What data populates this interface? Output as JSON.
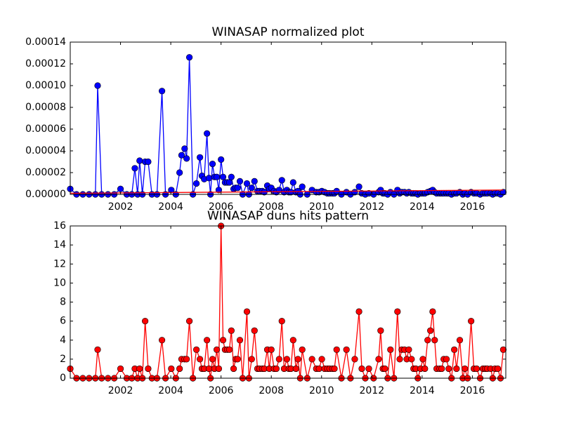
{
  "chart_data": [
    {
      "type": "line",
      "title": "WINASAP normalized plot",
      "x": [
        2000.0,
        2000.25,
        2000.5,
        2000.75,
        2001.0,
        2001.09,
        2001.25,
        2001.5,
        2001.75,
        2002.0,
        2002.25,
        2002.45,
        2002.57,
        2002.68,
        2002.76,
        2002.87,
        2002.98,
        2003.1,
        2003.25,
        2003.45,
        2003.65,
        2003.79,
        2004.02,
        2004.2,
        2004.35,
        2004.43,
        2004.55,
        2004.63,
        2004.74,
        2004.88,
        2005.02,
        2005.16,
        2005.24,
        2005.33,
        2005.44,
        2005.52,
        2005.58,
        2005.66,
        2005.74,
        2005.83,
        2005.91,
        2006.0,
        2006.08,
        2006.16,
        2006.25,
        2006.33,
        2006.41,
        2006.5,
        2006.58,
        2006.66,
        2006.75,
        2006.86,
        2007.03,
        2007.11,
        2007.22,
        2007.33,
        2007.45,
        2007.53,
        2007.64,
        2007.72,
        2007.84,
        2007.92,
        2008.0,
        2008.11,
        2008.2,
        2008.31,
        2008.42,
        2008.51,
        2008.62,
        2008.7,
        2008.78,
        2008.87,
        2008.98,
        2009.06,
        2009.15,
        2009.23,
        2009.43,
        2009.62,
        2009.79,
        2009.9,
        2010.01,
        2010.12,
        2010.23,
        2010.32,
        2010.43,
        2010.51,
        2010.6,
        2010.79,
        2010.99,
        2011.15,
        2011.32,
        2011.49,
        2011.6,
        2011.74,
        2011.88,
        2012.07,
        2012.27,
        2012.35,
        2012.44,
        2012.52,
        2012.63,
        2012.74,
        2012.88,
        2013.02,
        2013.11,
        2013.19,
        2013.3,
        2013.39,
        2013.47,
        2013.58,
        2013.66,
        2013.75,
        2013.83,
        2013.94,
        2014.03,
        2014.11,
        2014.22,
        2014.33,
        2014.42,
        2014.5,
        2014.58,
        2014.7,
        2014.78,
        2014.86,
        2014.97,
        2015.06,
        2015.17,
        2015.28,
        2015.37,
        2015.5,
        2015.62,
        2015.7,
        2015.81,
        2015.95,
        2016.06,
        2016.17,
        2016.31,
        2016.42,
        2016.51,
        2016.59,
        2016.73,
        2016.81,
        2016.9,
        2017.01,
        2017.12,
        2017.23
      ],
      "xlim": [
        2000.0,
        2017.33
      ],
      "xticks": [
        2002,
        2004,
        2006,
        2008,
        2010,
        2012,
        2014,
        2016
      ],
      "ylim": [
        0,
        0.00014
      ],
      "yticks": [
        {
          "value": 0,
          "label": "0.00000"
        },
        {
          "value": 2e-05,
          "label": "0.00002"
        },
        {
          "value": 4e-05,
          "label": "0.00004"
        },
        {
          "value": 6e-05,
          "label": "0.00006"
        },
        {
          "value": 8e-05,
          "label": "0.00008"
        },
        {
          "value": 0.0001,
          "label": "0.00010"
        },
        {
          "value": 0.00012,
          "label": "0.00012"
        },
        {
          "value": 0.00014,
          "label": "0.00014"
        }
      ],
      "series": [
        {
          "color": "#0000ff",
          "markers": true,
          "values": [
            5e-06,
            0,
            0,
            0,
            0,
            0.0001,
            0,
            0,
            0,
            5e-06,
            0,
            0,
            2.4e-05,
            0,
            3.1e-05,
            0,
            3e-05,
            3e-05,
            0,
            0,
            9.5e-05,
            0,
            4e-06,
            0,
            2e-05,
            3.6e-05,
            4.2e-05,
            3.3e-05,
            0.000126,
            0,
            1e-05,
            3.4e-05,
            1.7e-05,
            1.4e-05,
            5.6e-05,
            1.5e-05,
            0,
            2.8e-05,
            1.6e-05,
            1.6e-05,
            4e-06,
            3.2e-05,
            1.6e-05,
            1.1e-05,
            1.1e-05,
            1.1e-05,
            1.6e-05,
            5e-06,
            6e-06,
            6e-06,
            1.2e-05,
            0,
            1e-05,
            0,
            6e-06,
            1.2e-05,
            3e-06,
            3e-06,
            3e-06,
            2e-06,
            8e-06,
            5e-06,
            6e-06,
            3e-06,
            2e-06,
            4e-06,
            1.3e-05,
            2e-06,
            4e-06,
            2e-06,
            2e-06,
            1.1e-05,
            2e-06,
            3e-06,
            0,
            7e-06,
            0,
            4e-06,
            2e-06,
            2e-06,
            3e-06,
            2e-06,
            1e-06,
            1e-06,
            1e-06,
            1e-06,
            3e-06,
            0,
            2e-06,
            0,
            2e-06,
            7e-06,
            1e-06,
            0,
            1e-06,
            0,
            2e-06,
            4e-06,
            1e-06,
            1e-06,
            0,
            2e-06,
            0,
            4e-06,
            1e-06,
            2e-06,
            2e-06,
            1e-06,
            2e-06,
            1e-06,
            1e-06,
            1e-06,
            0,
            1e-06,
            1e-06,
            1e-06,
            2e-06,
            3e-06,
            4e-06,
            2e-06,
            1e-06,
            1e-06,
            1e-06,
            1e-06,
            1e-06,
            1e-06,
            0,
            1e-06,
            1e-06,
            2e-06,
            0,
            1e-06,
            0,
            2e-06,
            1e-06,
            1e-06,
            0,
            1e-06,
            1e-06,
            1e-06,
            1e-06,
            0,
            1e-06,
            1e-06,
            0,
            2e-06
          ]
        },
        {
          "color": "#ff0000",
          "markers": false,
          "x": [
            2000.0,
            2017.23
          ],
          "values": [
            1e-06,
            4e-06
          ]
        }
      ]
    },
    {
      "type": "line",
      "title": "WINASAP duns hits pattern",
      "x": [
        2000.0,
        2000.25,
        2000.5,
        2000.75,
        2001.0,
        2001.09,
        2001.25,
        2001.5,
        2001.75,
        2002.0,
        2002.25,
        2002.45,
        2002.57,
        2002.68,
        2002.76,
        2002.87,
        2002.98,
        2003.1,
        2003.25,
        2003.45,
        2003.65,
        2003.79,
        2004.02,
        2004.2,
        2004.35,
        2004.43,
        2004.55,
        2004.63,
        2004.74,
        2004.88,
        2005.02,
        2005.16,
        2005.24,
        2005.33,
        2005.44,
        2005.52,
        2005.58,
        2005.66,
        2005.74,
        2005.83,
        2005.91,
        2006.0,
        2006.08,
        2006.16,
        2006.25,
        2006.33,
        2006.41,
        2006.5,
        2006.58,
        2006.66,
        2006.75,
        2006.86,
        2007.03,
        2007.11,
        2007.22,
        2007.33,
        2007.45,
        2007.53,
        2007.64,
        2007.72,
        2007.84,
        2007.92,
        2008.0,
        2008.11,
        2008.2,
        2008.31,
        2008.42,
        2008.51,
        2008.62,
        2008.7,
        2008.78,
        2008.87,
        2008.98,
        2009.06,
        2009.15,
        2009.23,
        2009.43,
        2009.62,
        2009.79,
        2009.9,
        2010.01,
        2010.12,
        2010.23,
        2010.32,
        2010.43,
        2010.51,
        2010.6,
        2010.79,
        2010.99,
        2011.15,
        2011.32,
        2011.49,
        2011.6,
        2011.74,
        2011.88,
        2012.07,
        2012.27,
        2012.35,
        2012.44,
        2012.52,
        2012.63,
        2012.74,
        2012.88,
        2013.02,
        2013.11,
        2013.19,
        2013.3,
        2013.39,
        2013.47,
        2013.58,
        2013.66,
        2013.75,
        2013.83,
        2013.94,
        2014.03,
        2014.11,
        2014.22,
        2014.33,
        2014.42,
        2014.5,
        2014.58,
        2014.7,
        2014.78,
        2014.86,
        2014.97,
        2015.06,
        2015.17,
        2015.28,
        2015.37,
        2015.5,
        2015.62,
        2015.7,
        2015.81,
        2015.95,
        2016.06,
        2016.17,
        2016.31,
        2016.42,
        2016.51,
        2016.59,
        2016.73,
        2016.81,
        2016.9,
        2017.01,
        2017.12,
        2017.23
      ],
      "xlim": [
        2000.0,
        2017.33
      ],
      "xticks": [
        2002,
        2004,
        2006,
        2008,
        2010,
        2012,
        2014,
        2016
      ],
      "ylim": [
        0,
        16
      ],
      "yticks": [
        0,
        2,
        4,
        6,
        8,
        10,
        12,
        14,
        16
      ],
      "series": [
        {
          "color": "#ff0000",
          "markers": true,
          "values": [
            1,
            0,
            0,
            0,
            0,
            3,
            0,
            0,
            0,
            1,
            0,
            0,
            1,
            0,
            1,
            0,
            6,
            1,
            0,
            0,
            4,
            0,
            1,
            0,
            1,
            2,
            2,
            2,
            6,
            0,
            3,
            2,
            1,
            1,
            4,
            1,
            0,
            2,
            1,
            3,
            1,
            16,
            4,
            3,
            3,
            3,
            5,
            1,
            2,
            2,
            4,
            0,
            7,
            0,
            2,
            5,
            1,
            1,
            1,
            1,
            3,
            1,
            3,
            1,
            1,
            2,
            6,
            1,
            2,
            1,
            1,
            4,
            1,
            2,
            0,
            3,
            0,
            2,
            1,
            1,
            2,
            1,
            1,
            1,
            1,
            1,
            3,
            0,
            3,
            0,
            2,
            7,
            1,
            0,
            1,
            0,
            2,
            5,
            1,
            1,
            0,
            3,
            0,
            7,
            2,
            3,
            3,
            2,
            3,
            2,
            1,
            1,
            0,
            1,
            2,
            1,
            4,
            5,
            7,
            4,
            1,
            1,
            1,
            2,
            2,
            1,
            0,
            3,
            1,
            4,
            0,
            1,
            0,
            6,
            1,
            1,
            0,
            1,
            1,
            1,
            1,
            0,
            1,
            1,
            0,
            3
          ]
        }
      ]
    }
  ]
}
